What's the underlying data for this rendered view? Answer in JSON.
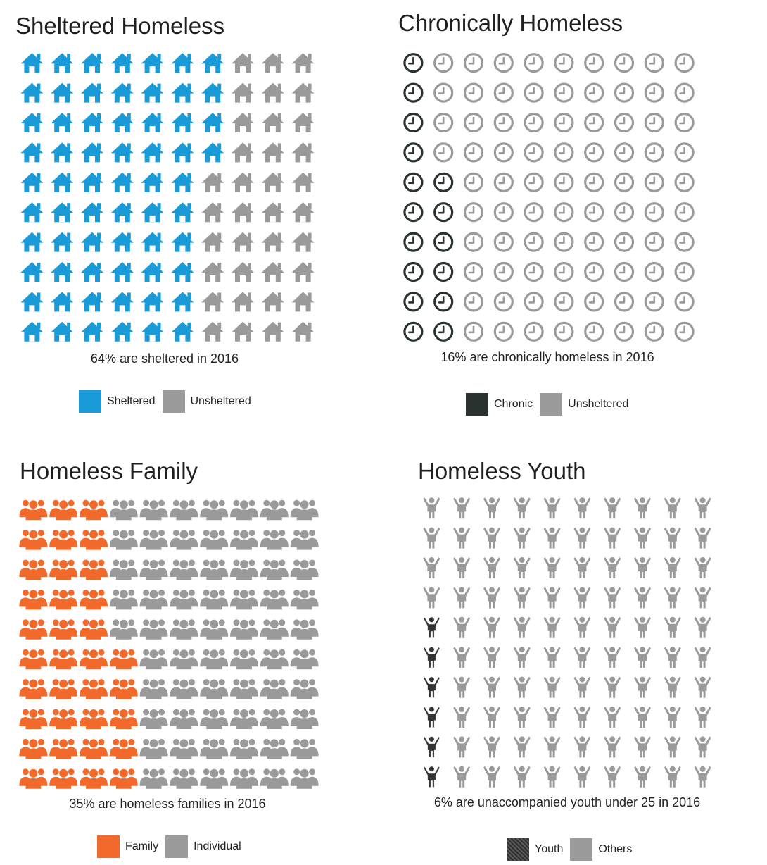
{
  "colors": {
    "sheltered": "#1a9bd7",
    "unsheltered": "#9a9a9a",
    "chronic": "#2a3230",
    "family": "#f26a2b",
    "individual": "#9a9a9a",
    "youth": "#333333",
    "others": "#9a9a9a"
  },
  "chart_data": [
    {
      "type": "waffle",
      "title": "Sheltered Homeless",
      "caption": "64% are sheltered in 2016",
      "icon": "house-icon",
      "rows": 10,
      "cols": 10,
      "fill_order": "column-major",
      "categories": [
        {
          "name": "Sheltered",
          "value": 64,
          "color": "#1a9bd7"
        },
        {
          "name": "Unsheltered",
          "value": 36,
          "color": "#9a9a9a"
        }
      ],
      "legend": [
        "Sheltered",
        "Unsheltered"
      ],
      "legend_position": "bottom"
    },
    {
      "type": "waffle",
      "title": "Chronically Homeless",
      "caption": "16% are chronically homeless in 2016",
      "icon": "clock-icon",
      "rows": 10,
      "cols": 10,
      "fill_order": "column-major-bottom-up",
      "categories": [
        {
          "name": "Chronic",
          "value": 16,
          "color": "#2a3230"
        },
        {
          "name": "Unsheltered",
          "value": 84,
          "color": "#9a9a9a"
        }
      ],
      "legend": [
        "Chronic",
        "Unsheltered"
      ],
      "legend_position": "bottom"
    },
    {
      "type": "waffle",
      "title": "Homeless Family",
      "caption": "35% are homeless families in 2016",
      "icon": "family-icon",
      "rows": 10,
      "cols": 10,
      "fill_order": "column-major-bottom-up",
      "categories": [
        {
          "name": "Family",
          "value": 35,
          "color": "#f26a2b"
        },
        {
          "name": "Individual",
          "value": 65,
          "color": "#9a9a9a"
        }
      ],
      "legend": [
        "Family",
        "Individual"
      ],
      "legend_position": "bottom"
    },
    {
      "type": "waffle",
      "title": "Homeless Youth",
      "caption": "6% are unaccompanied youth under 25 in 2016",
      "icon": "child-icon",
      "rows": 10,
      "cols": 10,
      "fill_order": "column-major-bottom-up",
      "categories": [
        {
          "name": "Youth",
          "value": 6,
          "color": "#333333"
        },
        {
          "name": "Others",
          "value": 94,
          "color": "#9a9a9a"
        }
      ],
      "legend": [
        "Youth",
        "Others"
      ],
      "legend_position": "bottom"
    }
  ]
}
